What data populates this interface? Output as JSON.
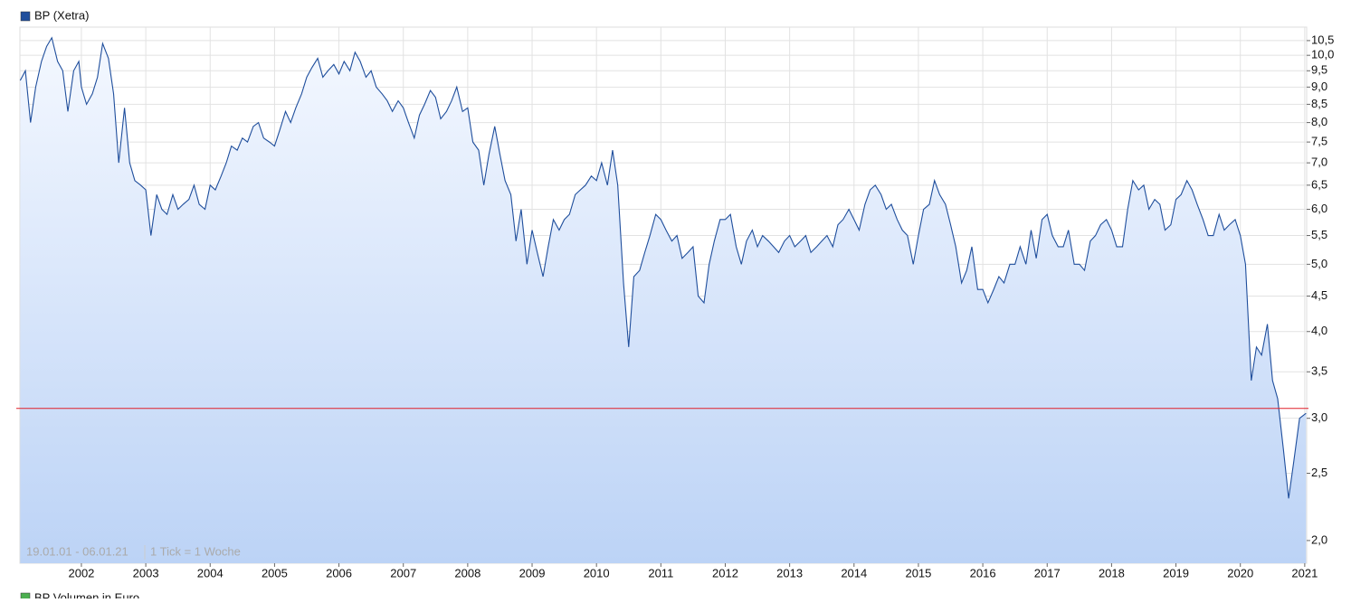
{
  "chart_data": {
    "type": "line",
    "x": [
      2001.05,
      2001.13,
      2001.21,
      2001.29,
      2001.38,
      2001.46,
      2001.54,
      2001.63,
      2001.71,
      2001.79,
      2001.88,
      2001.96,
      2002.0,
      2002.08,
      2002.17,
      2002.25,
      2002.33,
      2002.42,
      2002.5,
      2002.58,
      2002.67,
      2002.75,
      2002.83,
      2002.92,
      2003.0,
      2003.08,
      2003.17,
      2003.25,
      2003.33,
      2003.42,
      2003.5,
      2003.58,
      2003.67,
      2003.75,
      2003.83,
      2003.92,
      2004.0,
      2004.08,
      2004.17,
      2004.25,
      2004.33,
      2004.42,
      2004.5,
      2004.58,
      2004.67,
      2004.75,
      2004.83,
      2004.92,
      2005.0,
      2005.08,
      2005.17,
      2005.25,
      2005.33,
      2005.42,
      2005.5,
      2005.58,
      2005.67,
      2005.75,
      2005.83,
      2005.92,
      2006.0,
      2006.08,
      2006.17,
      2006.25,
      2006.33,
      2006.42,
      2006.5,
      2006.58,
      2006.67,
      2006.75,
      2006.83,
      2006.92,
      2007.0,
      2007.08,
      2007.17,
      2007.25,
      2007.33,
      2007.42,
      2007.5,
      2007.58,
      2007.67,
      2007.75,
      2007.83,
      2007.92,
      2008.0,
      2008.08,
      2008.17,
      2008.25,
      2008.33,
      2008.42,
      2008.5,
      2008.58,
      2008.67,
      2008.75,
      2008.83,
      2008.92,
      2009.0,
      2009.08,
      2009.17,
      2009.25,
      2009.33,
      2009.42,
      2009.5,
      2009.58,
      2009.67,
      2009.75,
      2009.83,
      2009.92,
      2010.0,
      2010.08,
      2010.17,
      2010.25,
      2010.33,
      2010.42,
      2010.5,
      2010.58,
      2010.67,
      2010.75,
      2010.83,
      2010.92,
      2011.0,
      2011.08,
      2011.17,
      2011.25,
      2011.33,
      2011.42,
      2011.5,
      2011.58,
      2011.67,
      2011.75,
      2011.83,
      2011.92,
      2012.0,
      2012.08,
      2012.17,
      2012.25,
      2012.33,
      2012.42,
      2012.5,
      2012.58,
      2012.67,
      2012.75,
      2012.83,
      2012.92,
      2013.0,
      2013.08,
      2013.17,
      2013.25,
      2013.33,
      2013.42,
      2013.5,
      2013.58,
      2013.67,
      2013.75,
      2013.83,
      2013.92,
      2014.0,
      2014.08,
      2014.17,
      2014.25,
      2014.33,
      2014.42,
      2014.5,
      2014.58,
      2014.67,
      2014.75,
      2014.83,
      2014.92,
      2015.0,
      2015.08,
      2015.17,
      2015.25,
      2015.33,
      2015.42,
      2015.5,
      2015.58,
      2015.67,
      2015.75,
      2015.83,
      2015.92,
      2016.0,
      2016.08,
      2016.17,
      2016.25,
      2016.33,
      2016.42,
      2016.5,
      2016.58,
      2016.67,
      2016.75,
      2016.83,
      2016.92,
      2017.0,
      2017.08,
      2017.17,
      2017.25,
      2017.33,
      2017.42,
      2017.5,
      2017.58,
      2017.67,
      2017.75,
      2017.83,
      2017.92,
      2018.0,
      2018.08,
      2018.17,
      2018.25,
      2018.33,
      2018.42,
      2018.5,
      2018.58,
      2018.67,
      2018.75,
      2018.83,
      2018.92,
      2019.0,
      2019.08,
      2019.17,
      2019.25,
      2019.33,
      2019.42,
      2019.5,
      2019.58,
      2019.67,
      2019.75,
      2019.83,
      2019.92,
      2020.0,
      2020.08,
      2020.17,
      2020.25,
      2020.33,
      2020.42,
      2020.5,
      2020.58,
      2020.67,
      2020.75,
      2020.83,
      2020.92,
      2021.02
    ],
    "series": [
      {
        "name": "BP (Xetra)",
        "color": "#1f4e9c",
        "values": [
          9.2,
          9.5,
          8.0,
          9.0,
          9.8,
          10.3,
          10.6,
          9.8,
          9.5,
          8.3,
          9.5,
          9.8,
          9.0,
          8.5,
          8.8,
          9.3,
          10.4,
          9.9,
          8.8,
          7.0,
          8.4,
          7.0,
          6.6,
          6.5,
          6.4,
          5.5,
          6.3,
          6.0,
          5.9,
          6.3,
          6.0,
          6.1,
          6.2,
          6.5,
          6.1,
          6.0,
          6.5,
          6.4,
          6.7,
          7.0,
          7.4,
          7.3,
          7.6,
          7.5,
          7.9,
          8.0,
          7.6,
          7.5,
          7.4,
          7.8,
          8.3,
          8.0,
          8.4,
          8.8,
          9.3,
          9.6,
          9.9,
          9.3,
          9.5,
          9.7,
          9.4,
          9.8,
          9.5,
          10.1,
          9.8,
          9.3,
          9.5,
          9.0,
          8.8,
          8.6,
          8.3,
          8.6,
          8.4,
          8.0,
          7.6,
          8.2,
          8.5,
          8.9,
          8.7,
          8.1,
          8.3,
          8.6,
          9.0,
          8.3,
          8.4,
          7.5,
          7.3,
          6.5,
          7.2,
          7.9,
          7.2,
          6.6,
          6.3,
          5.4,
          6.0,
          5.0,
          5.6,
          5.2,
          4.8,
          5.3,
          5.8,
          5.6,
          5.8,
          5.9,
          6.3,
          6.4,
          6.5,
          6.7,
          6.6,
          7.0,
          6.5,
          7.3,
          6.5,
          4.7,
          3.8,
          4.8,
          4.9,
          5.2,
          5.5,
          5.9,
          5.8,
          5.6,
          5.4,
          5.5,
          5.1,
          5.2,
          5.3,
          4.5,
          4.4,
          5.0,
          5.4,
          5.8,
          5.8,
          5.9,
          5.3,
          5.0,
          5.4,
          5.6,
          5.3,
          5.5,
          5.4,
          5.3,
          5.2,
          5.4,
          5.5,
          5.3,
          5.4,
          5.5,
          5.2,
          5.3,
          5.4,
          5.5,
          5.3,
          5.7,
          5.8,
          6.0,
          5.8,
          5.6,
          6.1,
          6.4,
          6.5,
          6.3,
          6.0,
          6.1,
          5.8,
          5.6,
          5.5,
          5.0,
          5.5,
          6.0,
          6.1,
          6.6,
          6.3,
          6.1,
          5.7,
          5.3,
          4.7,
          4.9,
          5.3,
          4.6,
          4.6,
          4.4,
          4.6,
          4.8,
          4.7,
          5.0,
          5.0,
          5.3,
          5.0,
          5.6,
          5.1,
          5.8,
          5.9,
          5.5,
          5.3,
          5.3,
          5.6,
          5.0,
          5.0,
          4.9,
          5.4,
          5.5,
          5.7,
          5.8,
          5.6,
          5.3,
          5.3,
          6.0,
          6.6,
          6.4,
          6.5,
          6.0,
          6.2,
          6.1,
          5.6,
          5.7,
          6.2,
          6.3,
          6.6,
          6.4,
          6.1,
          5.8,
          5.5,
          5.5,
          5.9,
          5.6,
          5.7,
          5.8,
          5.5,
          5.0,
          3.4,
          3.8,
          3.7,
          4.1,
          3.4,
          3.2,
          2.7,
          2.3,
          2.6,
          3.0,
          3.05
        ]
      }
    ],
    "xlim": [
      2001.045,
      2021.03
    ],
    "xticks": [
      2002,
      2003,
      2004,
      2005,
      2006,
      2007,
      2008,
      2009,
      2010,
      2011,
      2012,
      2013,
      2014,
      2015,
      2016,
      2017,
      2018,
      2019,
      2020,
      2021
    ],
    "ylim": [
      1.855,
      10.98
    ],
    "log_scale": true,
    "yticks": [
      {
        "value": 2.0,
        "label": "2,0"
      },
      {
        "value": 2.5,
        "label": "2,5"
      },
      {
        "value": 3.0,
        "label": "3,0"
      },
      {
        "value": 3.5,
        "label": "3,5"
      },
      {
        "value": 4.0,
        "label": "4,0"
      },
      {
        "value": 4.5,
        "label": "4,5"
      },
      {
        "value": 5.0,
        "label": "5,0"
      },
      {
        "value": 5.5,
        "label": "5,5"
      },
      {
        "value": 6.0,
        "label": "6,0"
      },
      {
        "value": 6.5,
        "label": "6,5"
      },
      {
        "value": 7.0,
        "label": "7,0"
      },
      {
        "value": 7.5,
        "label": "7,5"
      },
      {
        "value": 8.0,
        "label": "8,0"
      },
      {
        "value": 8.5,
        "label": "8,5"
      },
      {
        "value": 9.0,
        "label": "9,0"
      },
      {
        "value": 9.5,
        "label": "9,5"
      },
      {
        "value": 10.0,
        "label": "10,0"
      },
      {
        "value": 10.5,
        "label": "10,5"
      }
    ],
    "grid": true,
    "reference_line": {
      "value": 3.1,
      "color": "#e0202a"
    },
    "range_label": "19.01.01 - 06.01.21",
    "tick_label": "1 Tick = 1 Woche",
    "volume_legend": {
      "name": "BP Volumen in Euro",
      "color": "#4caf50"
    }
  }
}
